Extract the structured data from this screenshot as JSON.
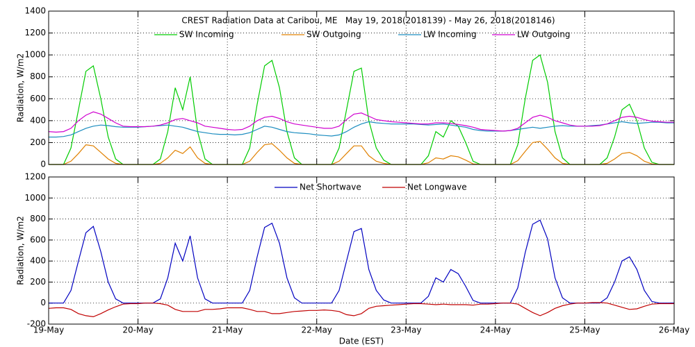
{
  "chart_data": [
    {
      "type": "line",
      "title": "CREST Radiation Data at Caribou, ME   May 19, 2018(2018139) - May 26, 2018(2018146)",
      "ylabel": "Radiation, W/m2",
      "x": [
        0,
        2,
        4,
        6,
        8,
        10,
        12,
        14,
        16,
        18,
        20,
        22,
        24,
        26,
        28,
        30,
        32,
        34,
        36,
        38,
        40,
        42,
        44,
        46,
        48,
        50,
        52,
        54,
        56,
        58,
        60,
        62,
        64,
        66,
        68,
        70,
        72,
        74,
        76,
        78,
        80,
        82,
        84,
        86,
        88,
        90,
        92,
        94,
        96,
        98,
        100,
        102,
        104,
        106,
        108,
        110,
        112,
        114,
        116,
        118,
        120,
        122,
        124,
        126,
        128,
        130,
        132,
        134,
        136,
        138,
        140,
        142,
        144,
        146,
        148,
        150,
        152,
        154,
        156,
        158,
        160,
        162,
        164,
        166,
        168
      ],
      "xlim": [
        0,
        168
      ],
      "xticks": [
        0,
        24,
        48,
        72,
        96,
        120,
        144,
        168
      ],
      "ylim": [
        0,
        1400
      ],
      "yticks": [
        0,
        200,
        400,
        600,
        800,
        1000,
        1200,
        1400
      ],
      "grid": true,
      "series": [
        {
          "name": "SW Incoming",
          "color": "#00cc00",
          "values": [
            0,
            0,
            0,
            150,
            500,
            850,
            900,
            600,
            250,
            50,
            0,
            0,
            0,
            0,
            0,
            50,
            300,
            700,
            500,
            800,
            300,
            50,
            0,
            0,
            0,
            0,
            0,
            150,
            550,
            900,
            950,
            700,
            300,
            60,
            0,
            0,
            0,
            0,
            0,
            150,
            500,
            850,
            880,
            400,
            150,
            40,
            0,
            0,
            0,
            0,
            0,
            80,
            300,
            250,
            400,
            350,
            200,
            30,
            0,
            0,
            0,
            0,
            0,
            180,
            600,
            950,
            1000,
            750,
            300,
            60,
            0,
            0,
            0,
            0,
            0,
            60,
            250,
            500,
            550,
            400,
            150,
            20,
            0,
            0,
            0
          ]
        },
        {
          "name": "SW Outgoing",
          "color": "#e08000",
          "values": [
            0,
            0,
            0,
            30,
            100,
            180,
            170,
            110,
            50,
            10,
            0,
            0,
            0,
            0,
            0,
            10,
            60,
            130,
            100,
            160,
            60,
            10,
            0,
            0,
            0,
            0,
            0,
            30,
            110,
            180,
            190,
            130,
            60,
            10,
            0,
            0,
            0,
            0,
            0,
            30,
            100,
            170,
            170,
            80,
            30,
            10,
            0,
            0,
            0,
            0,
            0,
            15,
            60,
            50,
            80,
            70,
            40,
            5,
            0,
            0,
            0,
            0,
            0,
            35,
            120,
            200,
            210,
            140,
            60,
            10,
            0,
            0,
            0,
            0,
            0,
            10,
            50,
            100,
            110,
            80,
            30,
            5,
            0,
            0,
            0
          ]
        },
        {
          "name": "LW Incoming",
          "color": "#1a8cbf",
          "values": [
            250,
            250,
            255,
            270,
            300,
            330,
            350,
            360,
            355,
            345,
            340,
            340,
            340,
            345,
            350,
            355,
            360,
            350,
            340,
            320,
            300,
            290,
            280,
            275,
            275,
            270,
            275,
            290,
            320,
            350,
            340,
            320,
            300,
            290,
            285,
            280,
            270,
            265,
            260,
            270,
            300,
            340,
            370,
            390,
            380,
            375,
            370,
            370,
            370,
            370,
            365,
            360,
            365,
            370,
            360,
            350,
            340,
            320,
            310,
            305,
            305,
            305,
            310,
            320,
            330,
            340,
            330,
            340,
            350,
            355,
            350,
            350,
            350,
            355,
            360,
            370,
            380,
            390,
            380,
            375,
            380,
            385,
            385,
            380,
            380
          ]
        },
        {
          "name": "LW Outgoing",
          "color": "#d000d0",
          "values": [
            300,
            295,
            300,
            330,
            400,
            450,
            480,
            460,
            420,
            380,
            350,
            345,
            345,
            345,
            350,
            360,
            380,
            410,
            420,
            400,
            380,
            350,
            340,
            330,
            320,
            315,
            320,
            350,
            400,
            430,
            440,
            420,
            390,
            370,
            360,
            350,
            340,
            330,
            330,
            350,
            410,
            460,
            470,
            440,
            410,
            400,
            390,
            385,
            380,
            375,
            370,
            370,
            380,
            380,
            375,
            365,
            355,
            340,
            320,
            315,
            310,
            305,
            310,
            330,
            380,
            430,
            450,
            430,
            400,
            380,
            360,
            350,
            350,
            350,
            355,
            370,
            400,
            430,
            440,
            430,
            410,
            395,
            390,
            385,
            385
          ]
        }
      ]
    },
    {
      "type": "line",
      "ylabel": "Radiation, W/m2",
      "xlabel": "Date (EST)",
      "x": [
        0,
        2,
        4,
        6,
        8,
        10,
        12,
        14,
        16,
        18,
        20,
        22,
        24,
        26,
        28,
        30,
        32,
        34,
        36,
        38,
        40,
        42,
        44,
        46,
        48,
        50,
        52,
        54,
        56,
        58,
        60,
        62,
        64,
        66,
        68,
        70,
        72,
        74,
        76,
        78,
        80,
        82,
        84,
        86,
        88,
        90,
        92,
        94,
        96,
        98,
        100,
        102,
        104,
        106,
        108,
        110,
        112,
        114,
        116,
        118,
        120,
        122,
        124,
        126,
        128,
        130,
        132,
        134,
        136,
        138,
        140,
        142,
        144,
        146,
        148,
        150,
        152,
        154,
        156,
        158,
        160,
        162,
        164,
        166,
        168
      ],
      "xlim": [
        0,
        168
      ],
      "xticks": [
        {
          "value": 0,
          "label": "19-May"
        },
        {
          "value": 24,
          "label": "20-May"
        },
        {
          "value": 48,
          "label": "21-May"
        },
        {
          "value": 72,
          "label": "22-May"
        },
        {
          "value": 96,
          "label": "23-May"
        },
        {
          "value": 120,
          "label": "24-May"
        },
        {
          "value": 144,
          "label": "25-May"
        },
        {
          "value": 168,
          "label": "26-May"
        }
      ],
      "ylim": [
        -200,
        1200
      ],
      "yticks": [
        -200,
        0,
        200,
        400,
        600,
        800,
        1000,
        1200
      ],
      "grid": true,
      "series": [
        {
          "name": "Net Shortwave",
          "color": "#0000c0",
          "values": [
            0,
            0,
            0,
            120,
            400,
            670,
            730,
            490,
            200,
            40,
            0,
            0,
            0,
            0,
            0,
            40,
            240,
            570,
            400,
            640,
            240,
            40,
            0,
            0,
            0,
            0,
            0,
            120,
            440,
            720,
            760,
            570,
            240,
            50,
            0,
            0,
            0,
            0,
            0,
            120,
            400,
            680,
            710,
            320,
            120,
            30,
            0,
            0,
            0,
            0,
            0,
            65,
            240,
            200,
            320,
            280,
            160,
            25,
            0,
            0,
            0,
            0,
            0,
            145,
            480,
            750,
            790,
            610,
            240,
            50,
            0,
            0,
            0,
            0,
            0,
            50,
            200,
            400,
            440,
            320,
            120,
            15,
            0,
            0,
            0
          ]
        },
        {
          "name": "Net Longwave",
          "color": "#c00000",
          "values": [
            -50,
            -45,
            -45,
            -60,
            -100,
            -120,
            -130,
            -100,
            -65,
            -35,
            -10,
            -5,
            -5,
            0,
            0,
            -5,
            -20,
            -60,
            -80,
            -80,
            -80,
            -60,
            -60,
            -55,
            -45,
            -45,
            -45,
            -60,
            -80,
            -80,
            -100,
            -100,
            -90,
            -80,
            -75,
            -70,
            -70,
            -65,
            -70,
            -80,
            -110,
            -120,
            -100,
            -50,
            -30,
            -25,
            -20,
            -15,
            -10,
            -5,
            -5,
            -10,
            -15,
            -10,
            -15,
            -15,
            -15,
            -20,
            -10,
            -10,
            -5,
            0,
            0,
            -10,
            -50,
            -90,
            -120,
            -90,
            -50,
            -25,
            -10,
            0,
            0,
            5,
            5,
            0,
            -20,
            -40,
            -60,
            -55,
            -30,
            -10,
            -5,
            -5,
            -5
          ]
        }
      ]
    }
  ]
}
